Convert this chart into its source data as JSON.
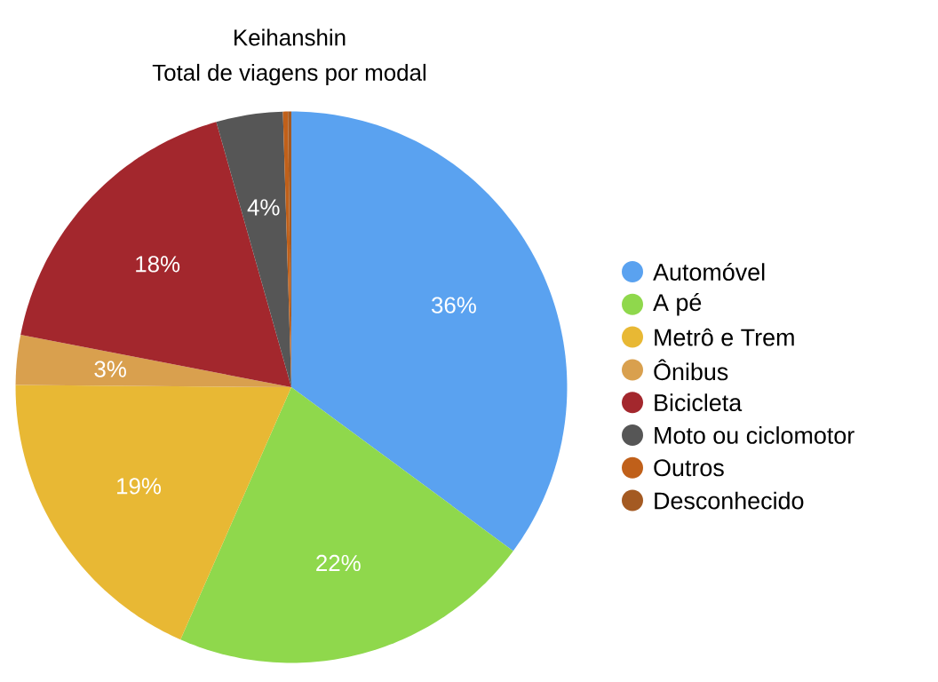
{
  "chart_data": {
    "type": "pie",
    "title": "Keihanshin",
    "subtitle": "Total de viagens por modal",
    "categories": [
      "Automóvel",
      "A pé",
      "Metrô e Trem",
      "Ônibus",
      "Bicicleta",
      "Moto ou ciclomotor",
      "Outros",
      "Desconhecido"
    ],
    "values": [
      36,
      22,
      19,
      3,
      18,
      4,
      0.3,
      0.2
    ],
    "value_labels": [
      "36%",
      "22%",
      "19%",
      "3%",
      "18%",
      "4%",
      null,
      null
    ],
    "colors": [
      "#5aa2f0",
      "#8fd84c",
      "#e8b834",
      "#d9a04e",
      "#a3272d",
      "#565656",
      "#c0601a",
      "#a45a22"
    ],
    "legend": "right"
  }
}
